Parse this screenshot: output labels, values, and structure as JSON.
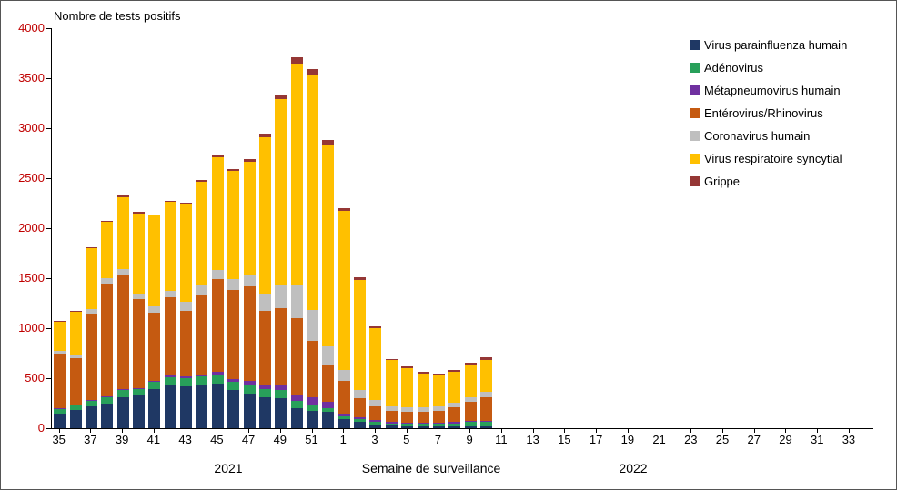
{
  "axis": {
    "year_left": "2021",
    "year_right": "2022"
  },
  "chart_data": {
    "type": "bar",
    "stacked": true,
    "title": "Nombre de tests positifs",
    "xlabel": "Semaine de surveillance",
    "ylim": [
      0,
      4000
    ],
    "ytick_step": 500,
    "legend_position": "top-right",
    "grid": false,
    "y_tick_color": "#c00000",
    "categories": [
      "35",
      "36",
      "37",
      "38",
      "39",
      "40",
      "41",
      "42",
      "43",
      "44",
      "45",
      "46",
      "47",
      "48",
      "49",
      "50",
      "51",
      "52",
      "1",
      "2",
      "3",
      "4",
      "5",
      "6",
      "7",
      "8",
      "9",
      "10",
      "11",
      "12",
      "13",
      "14",
      "15",
      "16",
      "17",
      "18",
      "19",
      "20",
      "21",
      "22",
      "23",
      "24",
      "25",
      "26",
      "27",
      "28",
      "29",
      "30",
      "31",
      "32",
      "33",
      "34"
    ],
    "series": [
      {
        "name": "Virus parainfluenza humain",
        "color": "#1F3864",
        "values": [
          150,
          180,
          220,
          250,
          310,
          330,
          390,
          430,
          420,
          430,
          450,
          380,
          350,
          310,
          300,
          200,
          170,
          160,
          90,
          60,
          40,
          25,
          20,
          15,
          15,
          15,
          15,
          15,
          0,
          0,
          0,
          0,
          0,
          0,
          0,
          0,
          0,
          0,
          0,
          0,
          0,
          0,
          0,
          0,
          0,
          0,
          0,
          0,
          0,
          0,
          0,
          0
        ]
      },
      {
        "name": "Adénovirus",
        "color": "#28A05A",
        "values": [
          40,
          50,
          50,
          60,
          70,
          60,
          70,
          80,
          80,
          90,
          90,
          80,
          80,
          80,
          80,
          70,
          60,
          40,
          30,
          30,
          25,
          25,
          25,
          30,
          30,
          35,
          45,
          50,
          0,
          0,
          0,
          0,
          0,
          0,
          0,
          0,
          0,
          0,
          0,
          0,
          0,
          0,
          0,
          0,
          0,
          0,
          0,
          0,
          0,
          0,
          0,
          0
        ]
      },
      {
        "name": "Métapneumovirus humain",
        "color": "#7030A0",
        "values": [
          10,
          10,
          10,
          10,
          10,
          10,
          15,
          15,
          15,
          20,
          20,
          30,
          40,
          50,
          60,
          70,
          80,
          60,
          30,
          20,
          15,
          10,
          10,
          10,
          10,
          10,
          10,
          10,
          0,
          0,
          0,
          0,
          0,
          0,
          0,
          0,
          0,
          0,
          0,
          0,
          0,
          0,
          0,
          0,
          0,
          0,
          0,
          0,
          0,
          0,
          0,
          0
        ]
      },
      {
        "name": "Entérovirus/Rhinovirus",
        "color": "#C55A11",
        "values": [
          550,
          460,
          870,
          1130,
          1140,
          890,
          680,
          780,
          660,
          800,
          930,
          890,
          950,
          730,
          760,
          760,
          560,
          380,
          320,
          190,
          140,
          110,
          110,
          110,
          120,
          150,
          190,
          230,
          0,
          0,
          0,
          0,
          0,
          0,
          0,
          0,
          0,
          0,
          0,
          0,
          0,
          0,
          0,
          0,
          0,
          0,
          0,
          0,
          0,
          0,
          0,
          0
        ]
      },
      {
        "name": "Coronavirus humain",
        "color": "#BFBFBF",
        "values": [
          20,
          30,
          40,
          50,
          60,
          60,
          60,
          70,
          90,
          90,
          90,
          110,
          120,
          180,
          240,
          330,
          310,
          180,
          110,
          80,
          60,
          50,
          45,
          40,
          40,
          45,
          50,
          55,
          0,
          0,
          0,
          0,
          0,
          0,
          0,
          0,
          0,
          0,
          0,
          0,
          0,
          0,
          0,
          0,
          0,
          0,
          0,
          0,
          0,
          0,
          0,
          0
        ]
      },
      {
        "name": "Virus respiratoire syncytial",
        "color": "#FFC000",
        "values": [
          290,
          430,
          610,
          560,
          720,
          800,
          910,
          890,
          980,
          1030,
          1130,
          1080,
          1120,
          1560,
          1850,
          2220,
          2350,
          2010,
          1590,
          1100,
          720,
          460,
          390,
          340,
          320,
          310,
          320,
          320,
          0,
          0,
          0,
          0,
          0,
          0,
          0,
          0,
          0,
          0,
          0,
          0,
          0,
          0,
          0,
          0,
          0,
          0,
          0,
          0,
          0,
          0,
          0,
          0
        ]
      },
      {
        "name": "Grippe",
        "color": "#953735",
        "values": [
          10,
          10,
          10,
          10,
          20,
          10,
          10,
          10,
          10,
          20,
          20,
          20,
          30,
          40,
          50,
          60,
          60,
          50,
          30,
          30,
          20,
          15,
          15,
          15,
          15,
          20,
          25,
          30,
          0,
          0,
          0,
          0,
          0,
          0,
          0,
          0,
          0,
          0,
          0,
          0,
          0,
          0,
          0,
          0,
          0,
          0,
          0,
          0,
          0,
          0,
          0,
          0
        ]
      }
    ]
  }
}
